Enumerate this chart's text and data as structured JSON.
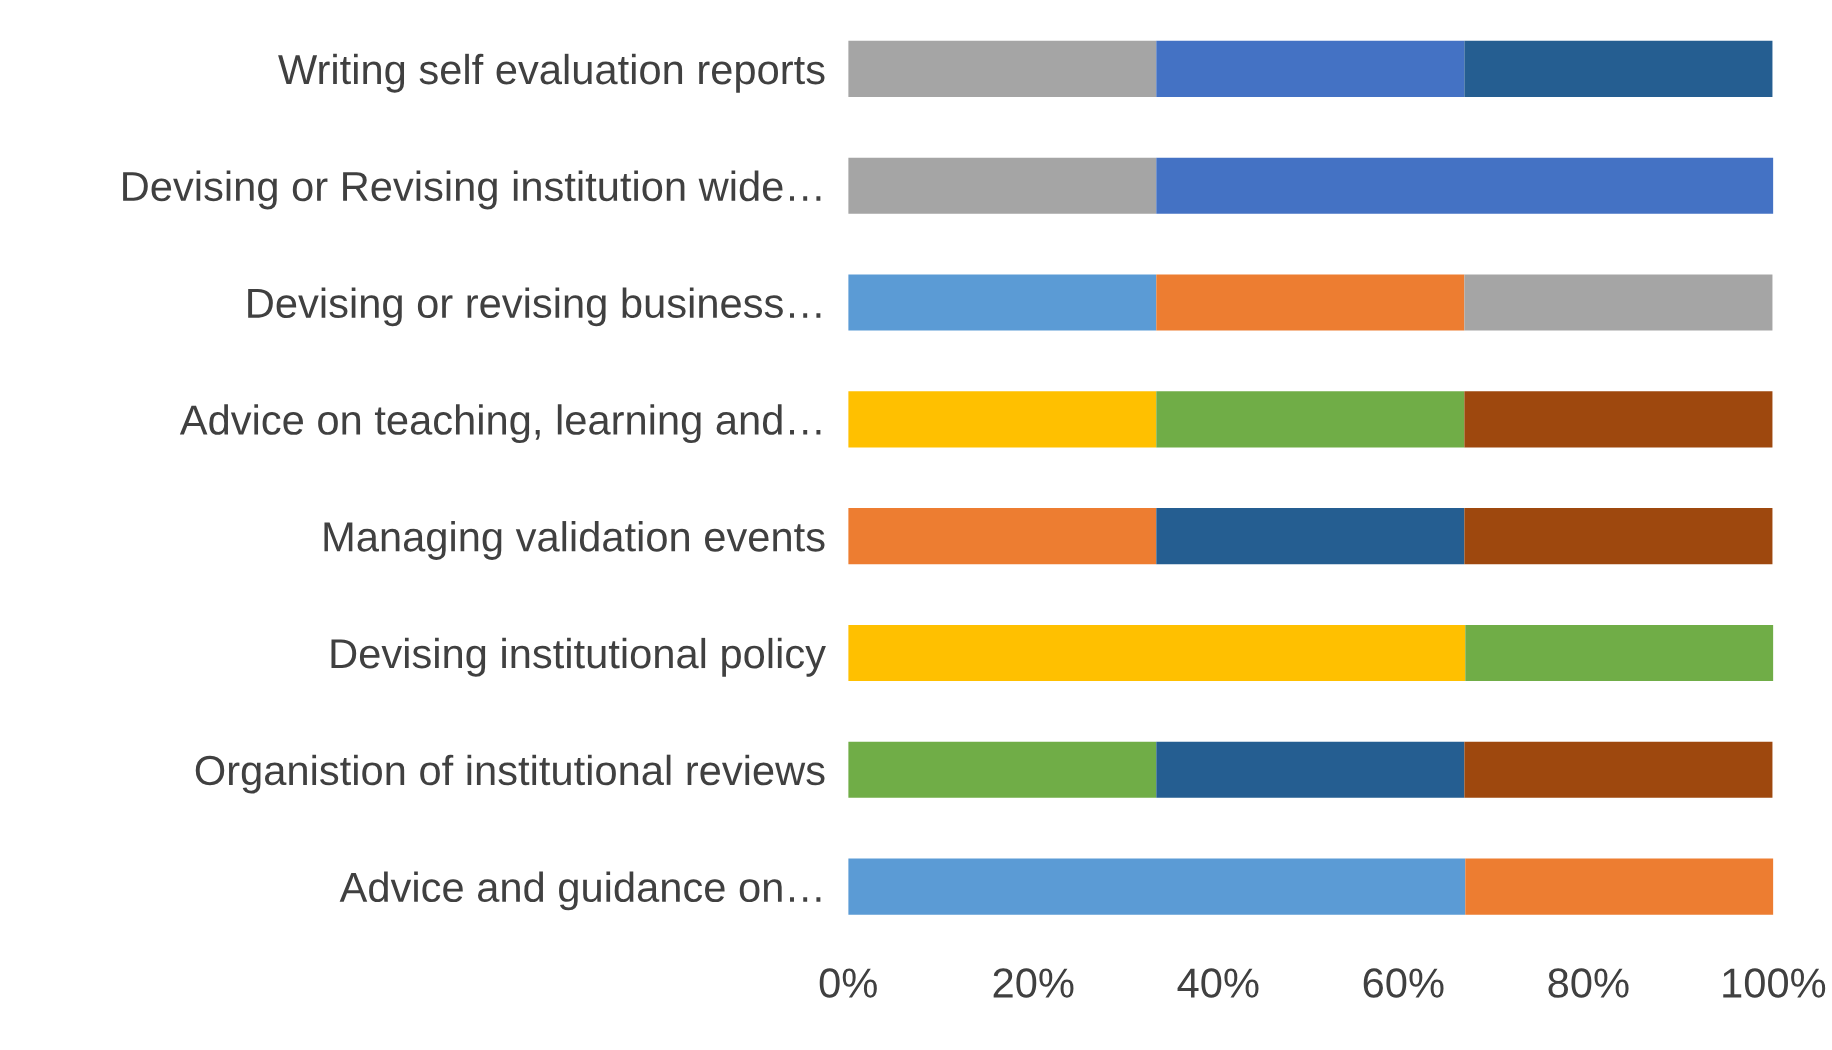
{
  "chart_data": {
    "type": "bar",
    "orientation": "horizontal",
    "stacked": true,
    "categories": [
      "Writing self evaluation reports",
      "Devising or Revising institution wide…",
      "Devising or revising business…",
      "Advice on teaching, learning and…",
      "Managing validation events",
      "Devising institutional policy",
      "Organistion of institutional reviews",
      "Advice and guidance on…"
    ],
    "series": [
      {
        "color": "#5b9bd5",
        "values": [
          null,
          null,
          33.3,
          null,
          null,
          null,
          null,
          66.7
        ]
      },
      {
        "color": "#ed7d31",
        "values": [
          null,
          null,
          33.3,
          null,
          33.3,
          null,
          null,
          33.3
        ]
      },
      {
        "color": "#a5a5a5",
        "values": [
          33.3,
          33.3,
          33.3,
          null,
          null,
          null,
          null,
          null
        ]
      },
      {
        "color": "#ffc000",
        "values": [
          null,
          null,
          null,
          33.3,
          null,
          66.7,
          null,
          null
        ]
      },
      {
        "color": "#4472c4",
        "values": [
          33.3,
          66.7,
          null,
          null,
          null,
          null,
          null,
          null
        ]
      },
      {
        "color": "#70ad47",
        "values": [
          null,
          null,
          null,
          33.3,
          null,
          33.3,
          33.3,
          null
        ]
      },
      {
        "color": "#255e91",
        "values": [
          33.3,
          null,
          null,
          null,
          33.3,
          null,
          33.3,
          null
        ]
      },
      {
        "color": "#9e480e",
        "values": [
          null,
          null,
          null,
          33.3,
          33.3,
          null,
          33.3,
          null
        ]
      }
    ],
    "xlim": [
      0,
      100
    ],
    "xticks": [
      {
        "value": 0,
        "label": "0%"
      },
      {
        "value": 20,
        "label": "20%"
      },
      {
        "value": 40,
        "label": "40%"
      },
      {
        "value": 60,
        "label": "60%"
      },
      {
        "value": 80,
        "label": "80%"
      },
      {
        "value": 100,
        "label": "100%"
      }
    ],
    "grid": false
  }
}
